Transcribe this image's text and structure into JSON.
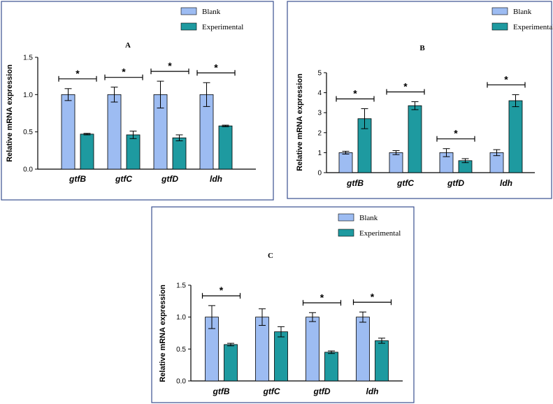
{
  "colors": {
    "blank": "#9dbcf2",
    "experimental": "#1e9aa0",
    "frame": "#3a4f8f",
    "ink": "#000000"
  },
  "legend": {
    "blank": "Blank",
    "experimental": "Experimental"
  },
  "chart_data": [
    {
      "type": "bar",
      "title": "A",
      "xlabel": "",
      "ylabel": "Relative mRNA expression",
      "ylim": [
        0,
        1.5
      ],
      "yticks": [
        "0.0",
        "0.5",
        "1.0",
        "1.5"
      ],
      "categories": [
        "gtfB",
        "gtfC",
        "gtfD",
        "ldh"
      ],
      "series": [
        {
          "name": "Blank",
          "values": [
            1.0,
            1.0,
            1.0,
            1.0
          ],
          "errors": [
            0.08,
            0.1,
            0.18,
            0.16
          ]
        },
        {
          "name": "Experimental",
          "values": [
            0.47,
            0.46,
            0.42,
            0.58
          ],
          "errors": [
            0.01,
            0.05,
            0.04,
            0.01
          ]
        }
      ],
      "significance": [
        "*",
        "*",
        "*",
        "*"
      ]
    },
    {
      "type": "bar",
      "title": "B",
      "xlabel": "",
      "ylabel": "Relative mRNA expression",
      "ylim": [
        0,
        5
      ],
      "yticks": [
        "0",
        "1",
        "2",
        "3",
        "4",
        "5"
      ],
      "categories": [
        "gtfB",
        "gtfC",
        "gtfD",
        "ldh"
      ],
      "series": [
        {
          "name": "Blank",
          "values": [
            1.0,
            1.0,
            1.0,
            1.0
          ],
          "errors": [
            0.07,
            0.1,
            0.2,
            0.15
          ]
        },
        {
          "name": "Experimental",
          "values": [
            2.7,
            3.35,
            0.6,
            3.6
          ],
          "errors": [
            0.5,
            0.2,
            0.1,
            0.3
          ]
        }
      ],
      "significance": [
        "*",
        "*",
        "*",
        "*"
      ]
    },
    {
      "type": "bar",
      "title": "C",
      "xlabel": "",
      "ylabel": "Relative mRNA expression",
      "ylim": [
        0,
        1.5
      ],
      "yticks": [
        "0.0",
        "0.5",
        "1.0",
        "1.5"
      ],
      "categories": [
        "gtfB",
        "gtfC",
        "gtfD",
        "ldh"
      ],
      "series": [
        {
          "name": "Blank",
          "values": [
            1.0,
            1.0,
            1.0,
            1.0
          ],
          "errors": [
            0.18,
            0.13,
            0.07,
            0.08
          ]
        },
        {
          "name": "Experimental",
          "values": [
            0.57,
            0.77,
            0.45,
            0.63
          ],
          "errors": [
            0.02,
            0.08,
            0.02,
            0.04
          ]
        }
      ],
      "significance": [
        "*",
        "",
        "*",
        "*"
      ]
    }
  ]
}
